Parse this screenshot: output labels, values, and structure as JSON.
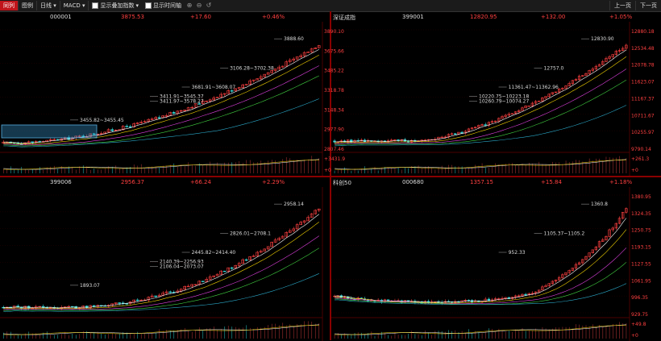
{
  "toolbar": {
    "tab1": "同列",
    "tab2": "图例",
    "period": "日线",
    "indicator": "MACD",
    "check1": "显示叠加指数",
    "check2": "显示时间轴",
    "prev": "上一页",
    "next": "下一页"
  },
  "panels": [
    {
      "name": "",
      "code": "000001",
      "price": "3875.53",
      "chg": "+17.60",
      "pct": "+0.46%",
      "yticks": [
        "3890.10",
        "3675.66",
        "3485.22",
        "3318.78",
        "3148.34",
        "2977.90",
        "2807.46"
      ],
      "vol_ticks": [
        "+3431.9",
        "+0"
      ],
      "annotations": [
        "3888.60",
        "3106.28~3702.38",
        "3681.91~3608.07",
        "3411.91~3545.37",
        "3411.97~3578.27",
        "3455.82~3455.45"
      ]
    },
    {
      "name": "深证成指",
      "code": "399001",
      "price": "12820.95",
      "chg": "+132.00",
      "pct": "+1.05%",
      "yticks": [
        "12880.18",
        "12534.48",
        "12078.78",
        "11623.07",
        "11167.37",
        "10711.67",
        "10255.97",
        "9790.14"
      ],
      "vol_ticks": [
        "+261.3",
        "+0"
      ],
      "annotations": [
        "12830.90",
        "12757.0",
        "11361.47~11362.96",
        "10220.75~10223.18",
        "10260.79~10074.27"
      ]
    },
    {
      "name": "",
      "code": "399006",
      "price": "2956.37",
      "chg": "+66.24",
      "pct": "+2.29%",
      "yticks": [],
      "vol_ticks": [],
      "annotations": [
        "2958.14",
        "2826.01~2708.1",
        "2445.82~2414.40",
        "2140.39~2256.93",
        "2106.04~2073.07",
        "1893.07"
      ]
    },
    {
      "name": "科创50",
      "code": "000680",
      "price": "1357.15",
      "chg": "+15.84",
      "pct": "+1.18%",
      "yticks": [
        "1380.95",
        "1324.35",
        "1250.75",
        "1193.15",
        "1127.55",
        "1061.95",
        "996.35",
        "929.75"
      ],
      "vol_ticks": [
        "+49.8",
        "+0"
      ],
      "annotations": [
        "1360.8",
        "1105.37~1105.2",
        "952.33"
      ]
    }
  ],
  "colors": {
    "up": "#ff4040",
    "down": "#35d6d6",
    "bg": "#000000",
    "grid": "#3a0000"
  }
}
